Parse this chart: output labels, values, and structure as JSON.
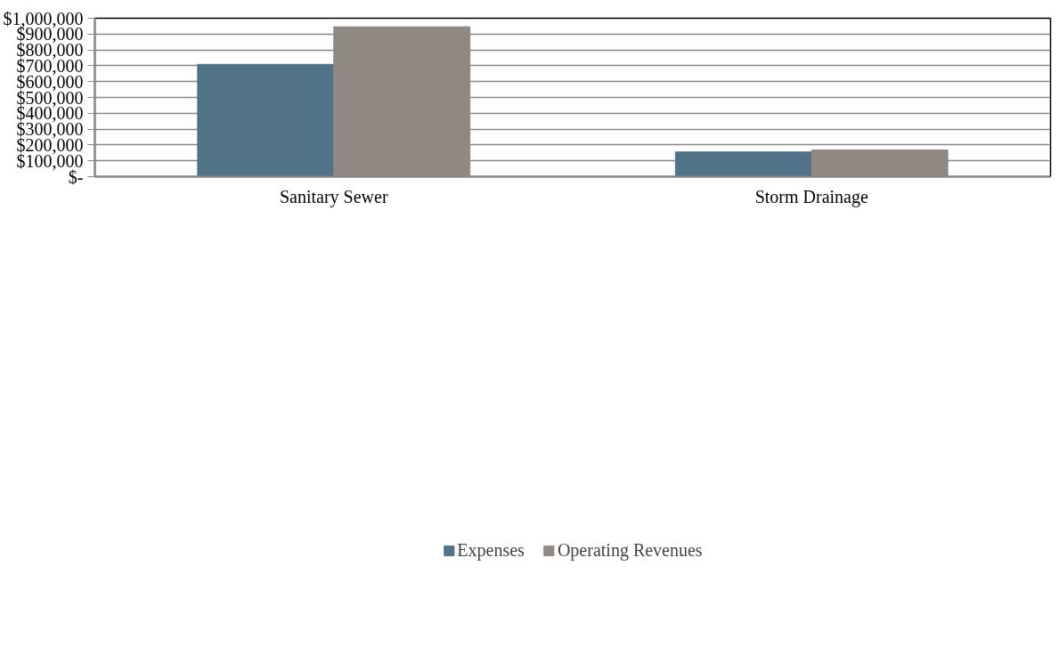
{
  "chart_data": {
    "type": "bar",
    "categories": [
      "Sanitary Sewer",
      "Storm Drainage"
    ],
    "series": [
      {
        "name": "Expenses",
        "color": "#517389",
        "values": [
          709000,
          156000
        ]
      },
      {
        "name": "Operating Revenues",
        "color": "#908882",
        "values": [
          946000,
          168000
        ]
      }
    ],
    "ylim": [
      0,
      1000000
    ],
    "yticks": [
      {
        "value": 0,
        "label": "$-"
      },
      {
        "value": 100000,
        "label": "$100,000"
      },
      {
        "value": 200000,
        "label": "$200,000"
      },
      {
        "value": 300000,
        "label": "$300,000"
      },
      {
        "value": 400000,
        "label": "$400,000"
      },
      {
        "value": 500000,
        "label": "$500,000"
      },
      {
        "value": 600000,
        "label": "$600,000"
      },
      {
        "value": 700000,
        "label": "$700,000"
      },
      {
        "value": 800000,
        "label": "$800,000"
      },
      {
        "value": 900000,
        "label": "$900,000"
      },
      {
        "value": 1000000,
        "label": "$1,000,000"
      }
    ],
    "grid": "y",
    "legend": "bottom"
  }
}
